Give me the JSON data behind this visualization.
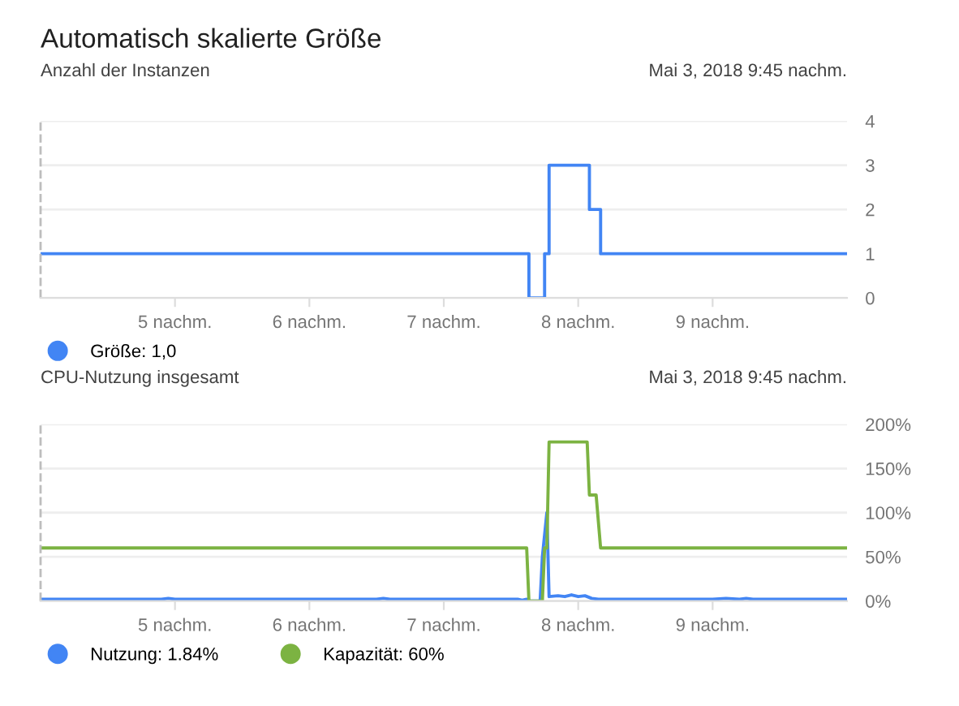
{
  "chart_data": [
    {
      "type": "step",
      "title": "Automatisch skalierte Größe",
      "subtitle": "Anzahl der Instanzen",
      "annotations": [
        "Mai 3, 2018 9:45 nachm."
      ],
      "series": [
        {
          "name": "Größe: 1,0",
          "color": "#4285f4",
          "x": [
            "2018-05-03T16:00",
            "2018-05-03T19:37",
            "2018-05-03T19:38",
            "2018-05-03T19:44",
            "2018-05-03T19:45",
            "2018-05-03T19:47",
            "2018-05-03T20:04",
            "2018-05-03T20:05",
            "2018-05-03T20:08",
            "2018-05-03T20:10",
            "2018-05-03T22:00"
          ],
          "values": [
            1,
            1,
            0,
            0,
            1,
            3,
            3,
            2,
            2,
            1,
            1
          ]
        }
      ],
      "xlim": [
        "2018-05-03T16:00",
        "2018-05-03T22:00"
      ],
      "xticks": [
        {
          "value": "2018-05-03T17:00",
          "label": "5 nachm."
        },
        {
          "value": "2018-05-03T18:00",
          "label": "6 nachm."
        },
        {
          "value": "2018-05-03T19:00",
          "label": "7 nachm."
        },
        {
          "value": "2018-05-03T20:00",
          "label": "8 nachm."
        },
        {
          "value": "2018-05-03T21:00",
          "label": "9 nachm."
        }
      ],
      "ylim": [
        0,
        4
      ],
      "yticks": [
        0,
        1,
        2,
        3,
        4
      ],
      "grid": "y",
      "legend": "bottom left",
      "marker": "none",
      "line_style": "solid",
      "ref_lines": [
        {
          "axis": "x",
          "value": "2018-05-03T16:00",
          "color": "#bdbdbd",
          "line_style": "dashed"
        }
      ]
    },
    {
      "type": "line",
      "title": "CPU-Nutzung insgesamt",
      "annotations": [
        "Mai 3, 2018 9:45 nachm."
      ],
      "series": [
        {
          "name": "Nutzung: 1.84%",
          "color": "#4285f4",
          "x": [
            "2018-05-03T16:00",
            "2018-05-03T16:54",
            "2018-05-03T16:57",
            "2018-05-03T17:00",
            "2018-05-03T18:30",
            "2018-05-03T18:33",
            "2018-05-03T18:36",
            "2018-05-03T19:33",
            "2018-05-03T19:35",
            "2018-05-03T19:37",
            "2018-05-03T19:38",
            "2018-05-03T19:43",
            "2018-05-03T19:44",
            "2018-05-03T19:46",
            "2018-05-03T19:47",
            "2018-05-03T19:51",
            "2018-05-03T19:54",
            "2018-05-03T19:57",
            "2018-05-03T20:00",
            "2018-05-03T20:03",
            "2018-05-03T20:06",
            "2018-05-03T20:09",
            "2018-05-03T21:00",
            "2018-05-03T21:06",
            "2018-05-03T21:12",
            "2018-05-03T21:15",
            "2018-05-03T21:18",
            "2018-05-03T22:00"
          ],
          "values": [
            2,
            2,
            3,
            2,
            2,
            3,
            2,
            2,
            1,
            2,
            0,
            0,
            50,
            100,
            5,
            6,
            5,
            7,
            5,
            6,
            3,
            2,
            2,
            3,
            2,
            3,
            2,
            2
          ]
        },
        {
          "name": "Kapazität: 60%",
          "color": "#7cb342",
          "x": [
            "2018-05-03T16:00",
            "2018-05-03T19:37",
            "2018-05-03T19:38",
            "2018-05-03T19:44",
            "2018-05-03T19:45",
            "2018-05-03T19:46",
            "2018-05-03T19:47",
            "2018-05-03T20:04",
            "2018-05-03T20:05",
            "2018-05-03T20:08",
            "2018-05-03T20:10",
            "2018-05-03T22:00"
          ],
          "values": [
            60,
            60,
            0,
            0,
            60,
            60,
            180,
            180,
            120,
            120,
            60,
            60
          ]
        }
      ],
      "xlim": [
        "2018-05-03T16:00",
        "2018-05-03T22:00"
      ],
      "xticks": [
        {
          "value": "2018-05-03T17:00",
          "label": "5 nachm."
        },
        {
          "value": "2018-05-03T18:00",
          "label": "6 nachm."
        },
        {
          "value": "2018-05-03T19:00",
          "label": "7 nachm."
        },
        {
          "value": "2018-05-03T20:00",
          "label": "8 nachm."
        },
        {
          "value": "2018-05-03T21:00",
          "label": "9 nachm."
        }
      ],
      "ylim": [
        0,
        200
      ],
      "yticks": [
        {
          "value": 0,
          "label": "0%"
        },
        {
          "value": 50,
          "label": "50%"
        },
        {
          "value": 100,
          "label": "100%"
        },
        {
          "value": 150,
          "label": "150%"
        },
        {
          "value": 200,
          "label": "200%"
        }
      ],
      "grid": "y",
      "legend": "bottom left",
      "marker": "none",
      "line_style": "solid",
      "ref_lines": [
        {
          "axis": "x",
          "value": "2018-05-03T16:00",
          "color": "#bdbdbd",
          "line_style": "dashed"
        }
      ]
    }
  ]
}
